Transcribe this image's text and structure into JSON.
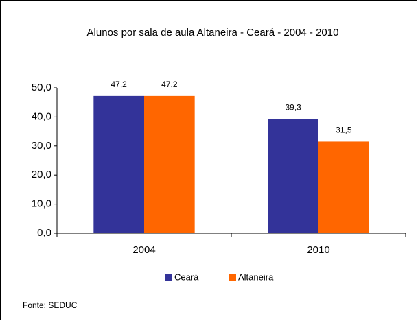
{
  "chart_data": {
    "type": "bar",
    "title": "Alunos por sala de aula Altaneira - Ceará - 2004 - 2010",
    "categories": [
      "2004",
      "2010"
    ],
    "series": [
      {
        "name": "Ceará",
        "color": "#333399",
        "values": [
          47.2,
          39.3
        ],
        "value_labels": [
          "47,2",
          "39,3"
        ]
      },
      {
        "name": "Altaneira",
        "color": "#ff6600",
        "values": [
          47.2,
          31.5
        ],
        "value_labels": [
          "47,2",
          "31,5"
        ]
      }
    ],
    "ylim": [
      0,
      50
    ],
    "yticks": [
      {
        "value": 0,
        "label": "0,0"
      },
      {
        "value": 10,
        "label": "10,0"
      },
      {
        "value": 20,
        "label": "20,0"
      },
      {
        "value": 30,
        "label": "30,0"
      },
      {
        "value": 40,
        "label": "40,0"
      },
      {
        "value": 50,
        "label": "50,0"
      }
    ],
    "grid": false,
    "legend": "bottom",
    "annotation": "Fonte: SEDUC"
  }
}
